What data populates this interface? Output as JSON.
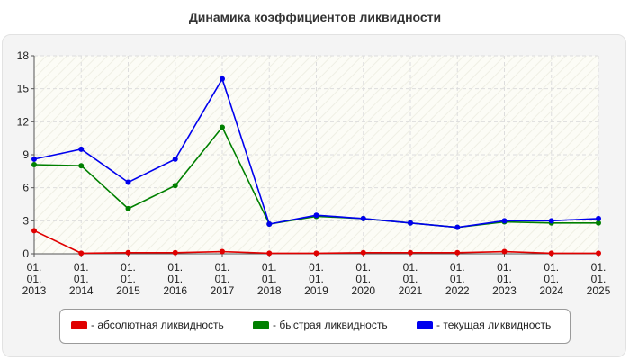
{
  "chart_data": {
    "type": "line",
    "title": "Динамика коэффициентов ликвидности",
    "xlabel": "",
    "ylabel": "",
    "categories": [
      [
        "01.",
        "01.",
        "2013"
      ],
      [
        "01.",
        "01.",
        "2014"
      ],
      [
        "01.",
        "01.",
        "2015"
      ],
      [
        "01.",
        "01.",
        "2016"
      ],
      [
        "01.",
        "01.",
        "2017"
      ],
      [
        "01.",
        "01.",
        "2018"
      ],
      [
        "01.",
        "01.",
        "2019"
      ],
      [
        "01.",
        "01.",
        "2020"
      ],
      [
        "01.",
        "01.",
        "2021"
      ],
      [
        "01.",
        "01.",
        "2022"
      ],
      [
        "01.",
        "01.",
        "2023"
      ],
      [
        "01.",
        "01.",
        "2024"
      ],
      [
        "01.",
        "01.",
        "2025"
      ]
    ],
    "ylim": [
      0,
      18
    ],
    "yticks": [
      0,
      3,
      6,
      9,
      12,
      15,
      18
    ],
    "grid": true,
    "legend_position": "bottom",
    "series": [
      {
        "name": "- абсолютная ликвидность",
        "color": "#e00000",
        "values": [
          2.1,
          0.05,
          0.1,
          0.1,
          0.2,
          0.05,
          0.05,
          0.1,
          0.1,
          0.1,
          0.2,
          0.05,
          0.05
        ]
      },
      {
        "name": "- быстрая ликвидность",
        "color": "#008000",
        "values": [
          8.1,
          8.0,
          4.1,
          6.2,
          11.5,
          2.7,
          3.4,
          3.2,
          2.8,
          2.4,
          2.9,
          2.8,
          2.8
        ]
      },
      {
        "name": "- текущая ликвидность",
        "color": "#0000ee",
        "values": [
          8.6,
          9.5,
          6.5,
          8.6,
          15.9,
          2.7,
          3.5,
          3.2,
          2.8,
          2.4,
          3.0,
          3.0,
          3.2
        ]
      }
    ]
  }
}
